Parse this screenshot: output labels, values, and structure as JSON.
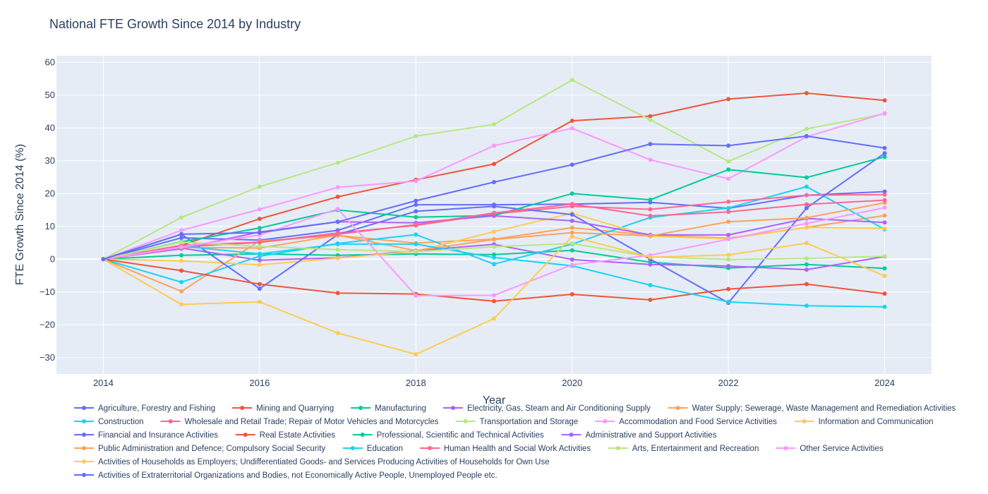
{
  "chart_data": {
    "type": "line",
    "title": "National FTE Growth Since 2014 by Industry",
    "xlabel": "Year",
    "ylabel": "FTE Growth Since 2014 (%)",
    "x": [
      2014,
      2015,
      2016,
      2017,
      2018,
      2019,
      2020,
      2021,
      2022,
      2023,
      2024
    ],
    "xticks": [
      "2014",
      "2016",
      "2018",
      "2020",
      "2022",
      "2024"
    ],
    "xlim": [
      2013.4,
      2024.6
    ],
    "ylim": [
      -35,
      62
    ],
    "yticks": [
      -30,
      -20,
      -10,
      0,
      10,
      20,
      30,
      40,
      50,
      60
    ],
    "ytick_labels": [
      "−30",
      "−20",
      "−10",
      "0",
      "10",
      "20",
      "30",
      "40",
      "50",
      "60"
    ],
    "grid": true,
    "legend_position": "bottom",
    "series": [
      {
        "name": "Agriculture, Forestry and Fishing",
        "color": "#636efa",
        "values": [
          0,
          6.5,
          5.8,
          8.8,
          16.6,
          16.6,
          16.8,
          17.3,
          15.5,
          19.5,
          20.6
        ]
      },
      {
        "name": "Mining and Quarrying",
        "color": "#ef553b",
        "values": [
          0,
          4.2,
          12.3,
          19.0,
          24.2,
          29.0,
          42.2,
          43.6,
          48.8,
          50.6,
          48.4
        ]
      },
      {
        "name": "Manufacturing",
        "color": "#00cc96",
        "values": [
          0,
          1.2,
          1.6,
          1.2,
          1.6,
          1.4,
          2.7,
          -0.9,
          -2.7,
          -1.6,
          -2.8
        ]
      },
      {
        "name": "Electricity, Gas, Steam and Air Conditioning Supply",
        "color": "#ab63fa",
        "values": [
          0,
          3.4,
          -0.3,
          0.4,
          2.6,
          4.5,
          -0.1,
          -1.6,
          -2.1,
          -3.2,
          0.8
        ]
      },
      {
        "name": "Water Supply; Sewerage, Waste Management and Remediation Activities",
        "color": "#ffa15a",
        "values": [
          0,
          -9.8,
          5.6,
          7.2,
          4.9,
          6.1,
          9.6,
          7.3,
          6.4,
          9.7,
          13.3
        ]
      },
      {
        "name": "Construction",
        "color": "#19d3f3",
        "values": [
          0,
          -7.0,
          0.9,
          4.8,
          7.5,
          -1.5,
          4.6,
          12.7,
          15.6,
          22.1,
          9.1
        ]
      },
      {
        "name": "Wholesale and Retail Trade; Repair of Motor Vehicles and Motorcycles",
        "color": "#ff6692",
        "values": [
          0,
          3.8,
          5.1,
          8.0,
          10.3,
          13.8,
          16.1,
          15.2,
          17.5,
          19.5,
          19.7
        ]
      },
      {
        "name": "Transportation and Storage",
        "color": "#b6e880",
        "values": [
          0,
          12.7,
          22.1,
          29.4,
          37.5,
          41.1,
          54.6,
          42.5,
          29.8,
          39.7,
          44.3
        ]
      },
      {
        "name": "Accommodation and Food Service Activities",
        "color": "#ff97ff",
        "values": [
          0,
          8.8,
          15.2,
          21.9,
          23.8,
          34.6,
          39.9,
          30.3,
          24.5,
          37.3,
          44.5
        ]
      },
      {
        "name": "Information and Communication",
        "color": "#fecb52",
        "values": [
          0,
          -0.5,
          -1.7,
          0.3,
          2.4,
          8.4,
          14.0,
          7.0,
          6.2,
          9.7,
          9.4
        ]
      },
      {
        "name": "Financial and Insurance Activities",
        "color": "#636efa",
        "values": [
          0,
          7.6,
          -9.0,
          7.5,
          14.6,
          16.1,
          13.6,
          0.0,
          -13.3,
          15.6,
          32.3
        ]
      },
      {
        "name": "Real Estate Activities",
        "color": "#ef553b",
        "values": [
          0,
          -3.5,
          -7.6,
          -10.3,
          -10.6,
          -12.8,
          -10.7,
          -12.4,
          -9.1,
          -7.6,
          -10.5
        ]
      },
      {
        "name": "Professional, Scientific and Technical Activities",
        "color": "#00cc96",
        "values": [
          0,
          5.3,
          9.5,
          15.0,
          12.8,
          13.3,
          20.0,
          18.1,
          27.3,
          24.9,
          31.2
        ]
      },
      {
        "name": "Administrative and Support Activities",
        "color": "#ab63fa",
        "values": [
          0,
          3.2,
          8.3,
          11.4,
          11.1,
          13.2,
          11.7,
          7.4,
          7.4,
          12.4,
          11.2
        ]
      },
      {
        "name": "Public Administration and Defence; Compulsory Social Security",
        "color": "#ffa15a",
        "values": [
          0,
          3.6,
          3.4,
          7.3,
          2.6,
          6.0,
          8.1,
          7.1,
          11.4,
          12.6,
          17.2
        ]
      },
      {
        "name": "Education",
        "color": "#19d3f3",
        "values": [
          0,
          4.0,
          1.6,
          4.6,
          4.6,
          0.5,
          -2.0,
          -7.9,
          -13.0,
          -14.2,
          -14.5
        ]
      },
      {
        "name": "Human Health and Social Work Activities",
        "color": "#ff6692",
        "values": [
          0,
          4.2,
          5.2,
          7.6,
          10.5,
          14.1,
          16.8,
          13.2,
          14.4,
          16.7,
          18.0
        ]
      },
      {
        "name": "Arts, Entertainment and Recreation",
        "color": "#b6e880",
        "values": [
          0,
          5.2,
          3.9,
          2.9,
          2.3,
          3.8,
          4.8,
          0.7,
          -0.1,
          0.2,
          0.9
        ]
      },
      {
        "name": "Other Service Activities",
        "color": "#ff97ff",
        "values": [
          0,
          3.7,
          7.4,
          15.3,
          -11.1,
          -11.0,
          -1.7,
          1.2,
          6.1,
          10.9,
          15.7
        ]
      },
      {
        "name": "Activities of Households as Employers; Undifferentiated Goods- and Services Producing Activities of Households for Own Use",
        "color": "#fecb52",
        "values": [
          0,
          -13.8,
          -13.0,
          -22.5,
          -29.0,
          -18.1,
          6.9,
          0.6,
          1.3,
          4.9,
          -5.1
        ]
      },
      {
        "name": "Activities of Extraterritorial Organizations and Bodies, not Economically Active People, Unemployed People etc.",
        "color": "#636efa",
        "values": [
          0,
          7.6,
          8.1,
          11.4,
          17.8,
          23.5,
          28.8,
          35.1,
          34.6,
          37.5,
          33.9
        ]
      }
    ]
  }
}
